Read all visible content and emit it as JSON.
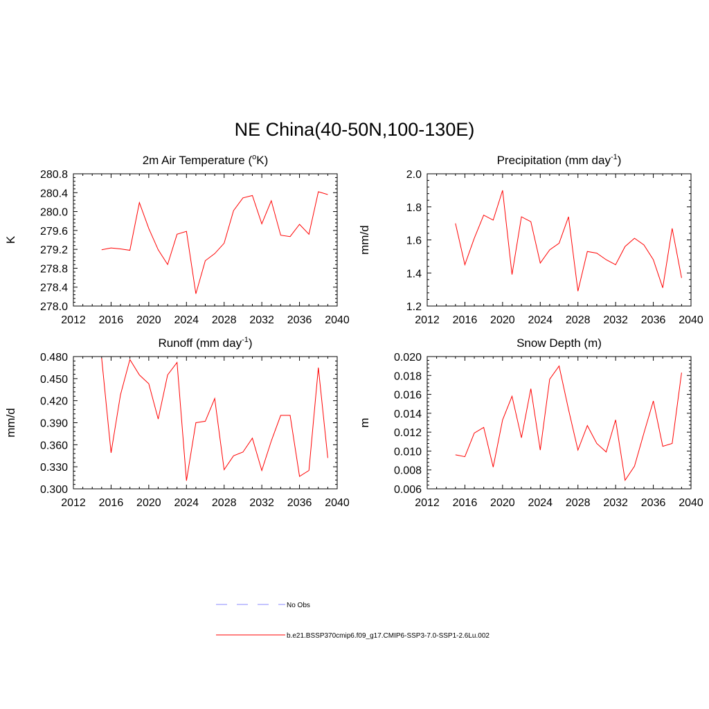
{
  "figure": {
    "title": "NE China(40-50N,100-130E)",
    "legend": {
      "items": [
        {
          "label": "No Obs",
          "color": "#a0a0ff",
          "style": "dashed"
        },
        {
          "label": "b.e21.BSSP370cmip6.f09_g17.CMIP6-SSP3-7.0-SSP1-2.6Lu.002",
          "color": "#ff0000",
          "style": "solid"
        }
      ]
    }
  },
  "chart_data": [
    {
      "type": "line",
      "title": "2m Air Temperature (",
      "title_sup": "o",
      "title_tail": "K)",
      "ylabel": "K",
      "xlim": [
        2012,
        2040
      ],
      "ylim": [
        278.0,
        280.8
      ],
      "xticks": [
        "2012",
        "2016",
        "2020",
        "2024",
        "2028",
        "2032",
        "2036",
        "2040"
      ],
      "yticks": [
        "278.0",
        "278.4",
        "278.8",
        "279.2",
        "279.6",
        "280.0",
        "280.4",
        "280.8"
      ],
      "series": [
        {
          "color": "#ff0000",
          "x": [
            2015,
            2016,
            2017,
            2018,
            2019,
            2020,
            2021,
            2022,
            2023,
            2024,
            2025,
            2026,
            2027,
            2028,
            2029,
            2030,
            2031,
            2032,
            2033,
            2034,
            2035,
            2036,
            2037,
            2038,
            2039
          ],
          "y": [
            279.19,
            279.23,
            279.21,
            279.18,
            280.19,
            279.64,
            279.19,
            278.88,
            279.52,
            279.58,
            278.26,
            278.96,
            279.11,
            279.33,
            280.02,
            280.29,
            280.34,
            279.74,
            280.23,
            279.5,
            279.47,
            279.73,
            279.52,
            280.42,
            280.36
          ]
        }
      ]
    },
    {
      "type": "line",
      "title": "Precipitation (mm day",
      "title_sup": "-1",
      "title_tail": ")",
      "ylabel": "mm/d",
      "xlim": [
        2012,
        2040
      ],
      "ylim": [
        1.2,
        2.0
      ],
      "xticks": [
        "2012",
        "2016",
        "2020",
        "2024",
        "2028",
        "2032",
        "2036",
        "2040"
      ],
      "yticks": [
        "1.2",
        "1.4",
        "1.6",
        "1.8",
        "2.0"
      ],
      "series": [
        {
          "color": "#ff0000",
          "x": [
            2015,
            2016,
            2017,
            2018,
            2019,
            2020,
            2021,
            2022,
            2023,
            2024,
            2025,
            2026,
            2027,
            2028,
            2029,
            2030,
            2031,
            2032,
            2033,
            2034,
            2035,
            2036,
            2037,
            2038,
            2039
          ],
          "y": [
            1.7,
            1.45,
            1.61,
            1.75,
            1.72,
            1.9,
            1.39,
            1.74,
            1.71,
            1.46,
            1.54,
            1.58,
            1.74,
            1.29,
            1.53,
            1.52,
            1.48,
            1.45,
            1.56,
            1.61,
            1.57,
            1.48,
            1.31,
            1.67,
            1.37
          ]
        }
      ]
    },
    {
      "type": "line",
      "title": "Runoff (mm day",
      "title_sup": "-1",
      "title_tail": ")",
      "ylabel": "mm/d",
      "xlim": [
        2012,
        2040
      ],
      "ylim": [
        0.3,
        0.48
      ],
      "xticks": [
        "2012",
        "2016",
        "2020",
        "2024",
        "2028",
        "2032",
        "2036",
        "2040"
      ],
      "yticks": [
        "0.300",
        "0.330",
        "0.360",
        "0.390",
        "0.420",
        "0.450",
        "0.480"
      ],
      "series": [
        {
          "color": "#ff0000",
          "x": [
            2015,
            2016,
            2017,
            2018,
            2019,
            2020,
            2021,
            2022,
            2023,
            2024,
            2025,
            2026,
            2027,
            2028,
            2029,
            2030,
            2031,
            2032,
            2033,
            2034,
            2035,
            2036,
            2037,
            2038,
            2039
          ],
          "y": [
            0.478,
            0.349,
            0.428,
            0.476,
            0.455,
            0.443,
            0.395,
            0.455,
            0.472,
            0.311,
            0.39,
            0.392,
            0.423,
            0.326,
            0.345,
            0.35,
            0.369,
            0.325,
            0.365,
            0.4,
            0.4,
            0.317,
            0.325,
            0.465,
            0.342
          ]
        }
      ]
    },
    {
      "type": "line",
      "title": "Snow Depth (m)",
      "title_sup": "",
      "title_tail": "",
      "ylabel": "m",
      "xlim": [
        2012,
        2040
      ],
      "ylim": [
        0.006,
        0.02
      ],
      "xticks": [
        "2012",
        "2016",
        "2020",
        "2024",
        "2028",
        "2032",
        "2036",
        "2040"
      ],
      "yticks": [
        "0.006",
        "0.008",
        "0.010",
        "0.012",
        "0.014",
        "0.016",
        "0.018",
        "0.020"
      ],
      "series": [
        {
          "color": "#ff0000",
          "x": [
            2015,
            2016,
            2017,
            2018,
            2019,
            2020,
            2021,
            2022,
            2023,
            2024,
            2025,
            2026,
            2027,
            2028,
            2029,
            2030,
            2031,
            2032,
            2033,
            2034,
            2035,
            2036,
            2037,
            2038,
            2039
          ],
          "y": [
            0.0096,
            0.0094,
            0.0119,
            0.0125,
            0.0083,
            0.0133,
            0.0158,
            0.0114,
            0.0166,
            0.0101,
            0.0176,
            0.019,
            0.0144,
            0.0101,
            0.0127,
            0.0108,
            0.0099,
            0.0133,
            0.0069,
            0.0084,
            0.0119,
            0.0153,
            0.0105,
            0.0108,
            0.0183
          ]
        }
      ]
    }
  ]
}
